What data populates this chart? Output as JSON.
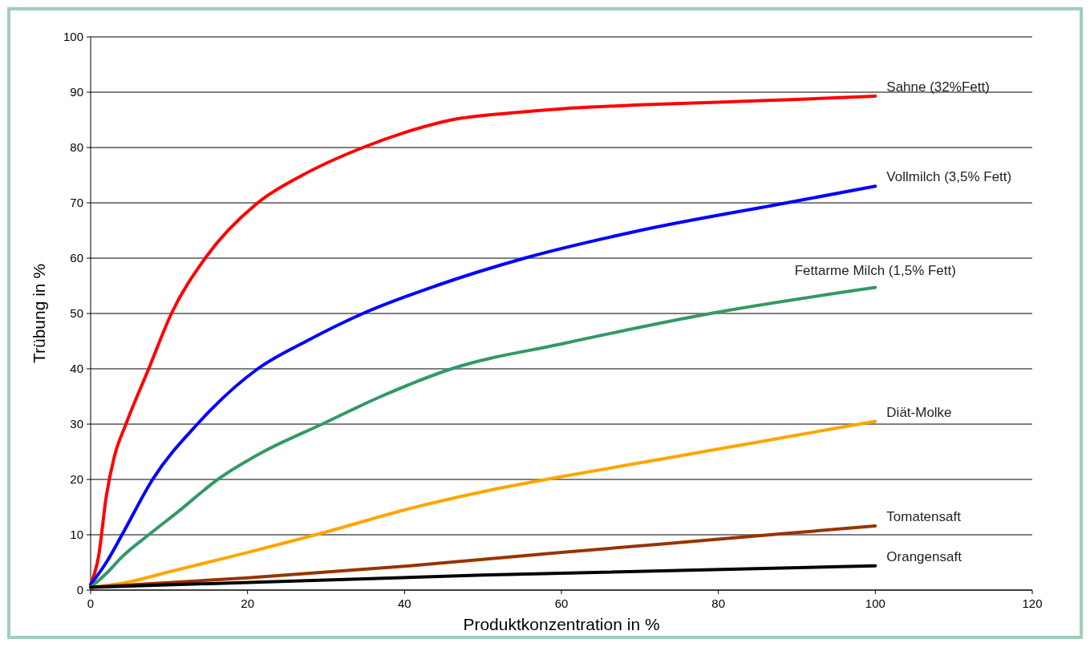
{
  "chart_data": {
    "type": "line",
    "xlabel": "Produktkonzentration in %",
    "ylabel": "Trübung in %",
    "xlim": [
      0,
      120
    ],
    "xticks": [
      0,
      20,
      40,
      60,
      80,
      100,
      120
    ],
    "ylim": [
      0,
      100
    ],
    "yticks": [
      0,
      10,
      20,
      30,
      40,
      50,
      60,
      70,
      80,
      90,
      100
    ],
    "grid": "y",
    "marker": "none",
    "line_style": "solid",
    "series": [
      {
        "name": "Sahne (32%Fett)",
        "color": "#ff0000",
        "x": [
          0,
          1,
          2,
          3,
          4.5,
          7.4,
          10.3,
          14.6,
          21.3,
          27,
          34.7,
          40,
          46,
          54,
          60,
          70,
          80,
          90,
          100
        ],
        "values": [
          1,
          6,
          17,
          24,
          30,
          40,
          50,
          60,
          70,
          75,
          80,
          82.7,
          85,
          86.3,
          87,
          87.7,
          88.2,
          88.7,
          89.3
        ]
      },
      {
        "name": "Vollmilch (3,5% Fett)",
        "color": "#0000ff",
        "x": [
          0,
          2,
          4,
          7.9,
          13.6,
          21.3,
          27.5,
          34.7,
          44,
          55.3,
          70,
          88.7,
          100
        ],
        "values": [
          1,
          5,
          10,
          20,
          30,
          40,
          45,
          50,
          55,
          60,
          65,
          70,
          73
        ]
      },
      {
        "name": "Fettarme Milch (1,5% Fett)",
        "color": "#339966",
        "x": [
          0,
          2,
          4,
          7.4,
          11,
          16.2,
          22,
          29.5,
          37,
          46,
          60,
          79,
          100
        ],
        "values": [
          0.5,
          3,
          6,
          10,
          14,
          20,
          25,
          30,
          35,
          40,
          44.5,
          50,
          54.7
        ]
      },
      {
        "name": "Diät-Molke",
        "color": "#ffa500",
        "x": [
          0,
          5,
          10,
          20,
          30,
          40,
          50,
          60,
          70,
          80,
          90,
          100
        ],
        "values": [
          0.5,
          1.5,
          3.3,
          6.8,
          10.5,
          14.5,
          17.8,
          20.5,
          23,
          25.5,
          28,
          30.5
        ]
      },
      {
        "name": "Tomatensaft",
        "color": "#993300",
        "x": [
          0,
          20,
          40,
          60,
          80,
          100
        ],
        "values": [
          0.5,
          2.2,
          4.3,
          6.8,
          9.2,
          11.6
        ]
      },
      {
        "name": "Orangensaft",
        "color": "#000000",
        "x": [
          0,
          50,
          100
        ],
        "values": [
          0.5,
          2.7,
          4.4
        ]
      }
    ]
  }
}
